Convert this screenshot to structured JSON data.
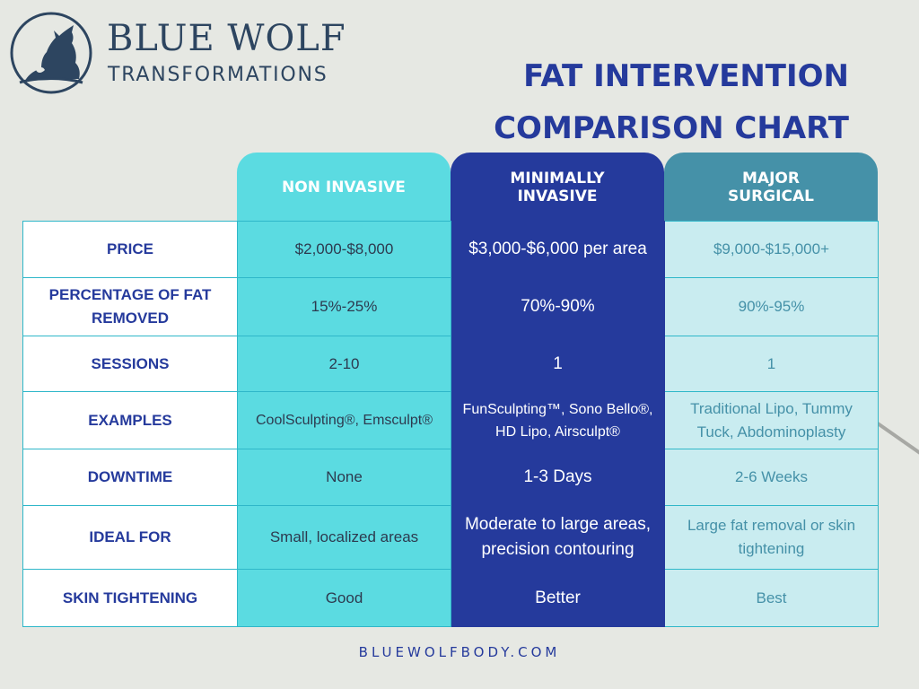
{
  "brand": {
    "name": "BLUE WOLF",
    "subtitle": "TRANSFORMATIONS",
    "logo_icon": "howling-wolf-icon",
    "color": "#2d4560"
  },
  "title": {
    "line1": "FAT INTERVENTION",
    "line2": "COMPARISON CHART",
    "color": "#253a9c"
  },
  "columns": [
    {
      "label": "NON INVASIVE",
      "color": "#5bdbe1"
    },
    {
      "label": "MINIMALLY\nINVASIVE",
      "color": "#253a9c"
    },
    {
      "label": "MAJOR\nSURGICAL",
      "color": "#4591a8"
    }
  ],
  "rows": [
    {
      "label": "PRICE",
      "values": [
        "$2,000-$8,000",
        "$3,000-$6,000 per area",
        "$9,000-$15,000+"
      ]
    },
    {
      "label": "PERCENTAGE OF FAT REMOVED",
      "values": [
        "15%-25%",
        "70%-90%",
        "90%-95%"
      ]
    },
    {
      "label": "SESSIONS",
      "values": [
        "2-10",
        "1",
        "1"
      ]
    },
    {
      "label": "EXAMPLES",
      "values": [
        "CoolSculpting®, Emsculpt®",
        "FunSculpting™, Sono Bello®, HD Lipo, Airsculpt®",
        "Traditional Lipo, Tummy Tuck, Abdominoplasty"
      ]
    },
    {
      "label": "DOWNTIME",
      "values": [
        "None",
        "1-3 Days",
        "2-6 Weeks"
      ]
    },
    {
      "label": "IDEAL FOR",
      "values": [
        "Small, localized areas",
        "Moderate to large areas, precision contouring",
        "Large fat removal or skin tightening"
      ]
    },
    {
      "label": "SKIN TIGHTENING",
      "values": [
        "Good",
        "Better",
        "Best"
      ]
    }
  ],
  "footer": "BLUEWOLFBODY.COM"
}
